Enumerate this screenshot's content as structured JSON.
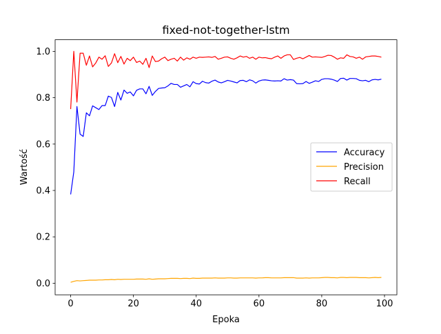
{
  "chart_data": {
    "type": "line",
    "title": "fixed-not-together-lstm",
    "xlabel": "Epoka",
    "ylabel": "Wartość",
    "xlim": [
      -4.95,
      103.95
    ],
    "ylim": [
      -0.05,
      1.05
    ],
    "x_ticks": [
      0,
      20,
      40,
      60,
      80,
      100
    ],
    "y_ticks": [
      0.0,
      0.2,
      0.4,
      0.6,
      0.8,
      1.0
    ],
    "x_tick_labels": [
      "0",
      "20",
      "40",
      "60",
      "80",
      "100"
    ],
    "y_tick_labels": [
      "0.0",
      "0.2",
      "0.4",
      "0.6",
      "0.8",
      "1.0"
    ],
    "grid": false,
    "legend_position": "center-right",
    "series": [
      {
        "name": "Accuracy",
        "color": "#0000ff",
        "values": [
          0.383,
          0.48,
          0.762,
          0.643,
          0.633,
          0.735,
          0.722,
          0.765,
          0.757,
          0.749,
          0.766,
          0.766,
          0.807,
          0.801,
          0.762,
          0.823,
          0.79,
          0.833,
          0.819,
          0.825,
          0.808,
          0.832,
          0.838,
          0.838,
          0.817,
          0.849,
          0.81,
          0.827,
          0.84,
          0.842,
          0.843,
          0.851,
          0.862,
          0.857,
          0.857,
          0.845,
          0.851,
          0.857,
          0.847,
          0.869,
          0.861,
          0.859,
          0.871,
          0.865,
          0.863,
          0.871,
          0.876,
          0.868,
          0.864,
          0.869,
          0.875,
          0.872,
          0.868,
          0.864,
          0.874,
          0.875,
          0.869,
          0.877,
          0.873,
          0.863,
          0.872,
          0.876,
          0.877,
          0.875,
          0.873,
          0.872,
          0.873,
          0.872,
          0.882,
          0.876,
          0.878,
          0.876,
          0.861,
          0.86,
          0.861,
          0.87,
          0.862,
          0.867,
          0.873,
          0.87,
          0.879,
          0.882,
          0.882,
          0.88,
          0.876,
          0.87,
          0.883,
          0.884,
          0.876,
          0.883,
          0.883,
          0.882,
          0.875,
          0.873,
          0.875,
          0.869,
          0.877,
          0.879,
          0.877,
          0.88
        ]
      },
      {
        "name": "Precision",
        "color": "#ffa500",
        "values": [
          0.004,
          0.008,
          0.011,
          0.01,
          0.011,
          0.012,
          0.013,
          0.013,
          0.013,
          0.014,
          0.014,
          0.015,
          0.015,
          0.016,
          0.015,
          0.017,
          0.016,
          0.017,
          0.017,
          0.017,
          0.017,
          0.018,
          0.018,
          0.018,
          0.017,
          0.019,
          0.017,
          0.018,
          0.019,
          0.019,
          0.019,
          0.02,
          0.021,
          0.021,
          0.021,
          0.02,
          0.021,
          0.021,
          0.02,
          0.022,
          0.021,
          0.021,
          0.022,
          0.022,
          0.022,
          0.022,
          0.023,
          0.022,
          0.022,
          0.022,
          0.023,
          0.023,
          0.022,
          0.022,
          0.023,
          0.023,
          0.023,
          0.023,
          0.023,
          0.022,
          0.023,
          0.023,
          0.024,
          0.024,
          0.023,
          0.023,
          0.023,
          0.023,
          0.024,
          0.024,
          0.024,
          0.024,
          0.022,
          0.022,
          0.022,
          0.023,
          0.022,
          0.023,
          0.023,
          0.023,
          0.024,
          0.025,
          0.025,
          0.024,
          0.024,
          0.023,
          0.025,
          0.025,
          0.024,
          0.025,
          0.025,
          0.025,
          0.024,
          0.024,
          0.024,
          0.023,
          0.024,
          0.025,
          0.024,
          0.025
        ]
      },
      {
        "name": "Recall",
        "color": "#ff0000",
        "values": [
          0.751,
          1.0,
          0.781,
          0.992,
          0.992,
          0.94,
          0.98,
          0.933,
          0.95,
          0.975,
          0.966,
          0.981,
          0.935,
          0.95,
          0.99,
          0.951,
          0.978,
          0.945,
          0.97,
          0.96,
          0.975,
          0.952,
          0.958,
          0.944,
          0.97,
          0.93,
          0.98,
          0.956,
          0.958,
          0.968,
          0.975,
          0.96,
          0.966,
          0.97,
          0.958,
          0.975,
          0.962,
          0.972,
          0.966,
          0.975,
          0.97,
          0.975,
          0.974,
          0.975,
          0.976,
          0.974,
          0.978,
          0.966,
          0.97,
          0.975,
          0.976,
          0.97,
          0.966,
          0.972,
          0.98,
          0.975,
          0.978,
          0.97,
          0.975,
          0.966,
          0.975,
          0.972,
          0.973,
          0.97,
          0.968,
          0.975,
          0.98,
          0.97,
          0.98,
          0.985,
          0.985,
          0.965,
          0.97,
          0.974,
          0.968,
          0.975,
          0.982,
          0.975,
          0.976,
          0.975,
          0.974,
          0.978,
          0.983,
          0.982,
          0.975,
          0.966,
          0.972,
          0.97,
          0.985,
          0.978,
          0.976,
          0.97,
          0.975,
          0.966,
          0.976,
          0.978,
          0.98,
          0.98,
          0.978,
          0.975
        ]
      }
    ]
  }
}
